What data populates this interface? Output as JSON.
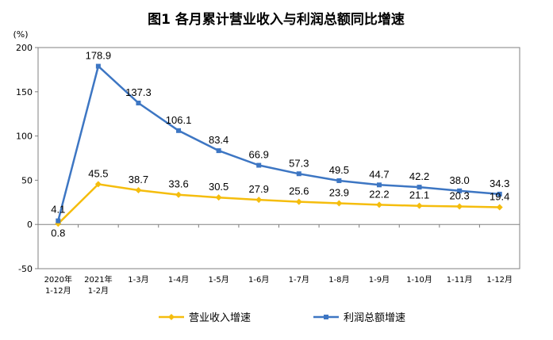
{
  "chart_data": {
    "type": "line",
    "title": "图1  各月累计营业收入与利润总额同比增速",
    "unit": "(%)",
    "ylim": [
      -50,
      200
    ],
    "yticks": [
      "200",
      "150",
      "100",
      "50",
      "0",
      "-50"
    ],
    "categories": [
      [
        "2020年",
        "1-12月"
      ],
      [
        "2021年",
        "1-2月"
      ],
      [
        "1-3月"
      ],
      [
        "1-4月"
      ],
      [
        "1-5月"
      ],
      [
        "1-6月"
      ],
      [
        "1-7月"
      ],
      [
        "1-8月"
      ],
      [
        "1-9月"
      ],
      [
        "1-10月"
      ],
      [
        "1-11月"
      ],
      [
        "1-12月"
      ]
    ],
    "series": [
      {
        "name": "营业收入增速",
        "color": "#f5bd0d",
        "values": [
          0.8,
          45.5,
          38.7,
          33.6,
          30.5,
          27.9,
          25.6,
          23.9,
          22.2,
          21.1,
          20.3,
          19.4
        ],
        "labels": [
          "0.8",
          "45.5",
          "38.7",
          "33.6",
          "30.5",
          "27.9",
          "25.6",
          "23.9",
          "22.2",
          "21.1",
          "20.3",
          "19.4"
        ]
      },
      {
        "name": "利润总额增速",
        "color": "#3d76c3",
        "values": [
          4.1,
          178.9,
          137.3,
          106.1,
          83.4,
          66.9,
          57.3,
          49.5,
          44.7,
          42.2,
          38.0,
          34.3
        ],
        "labels": [
          "4.1",
          "178.9",
          "137.3",
          "106.1",
          "83.4",
          "66.9",
          "57.3",
          "49.5",
          "44.7",
          "42.2",
          "38.0",
          "34.3"
        ]
      }
    ],
    "legend": "bottom",
    "grid": false
  }
}
